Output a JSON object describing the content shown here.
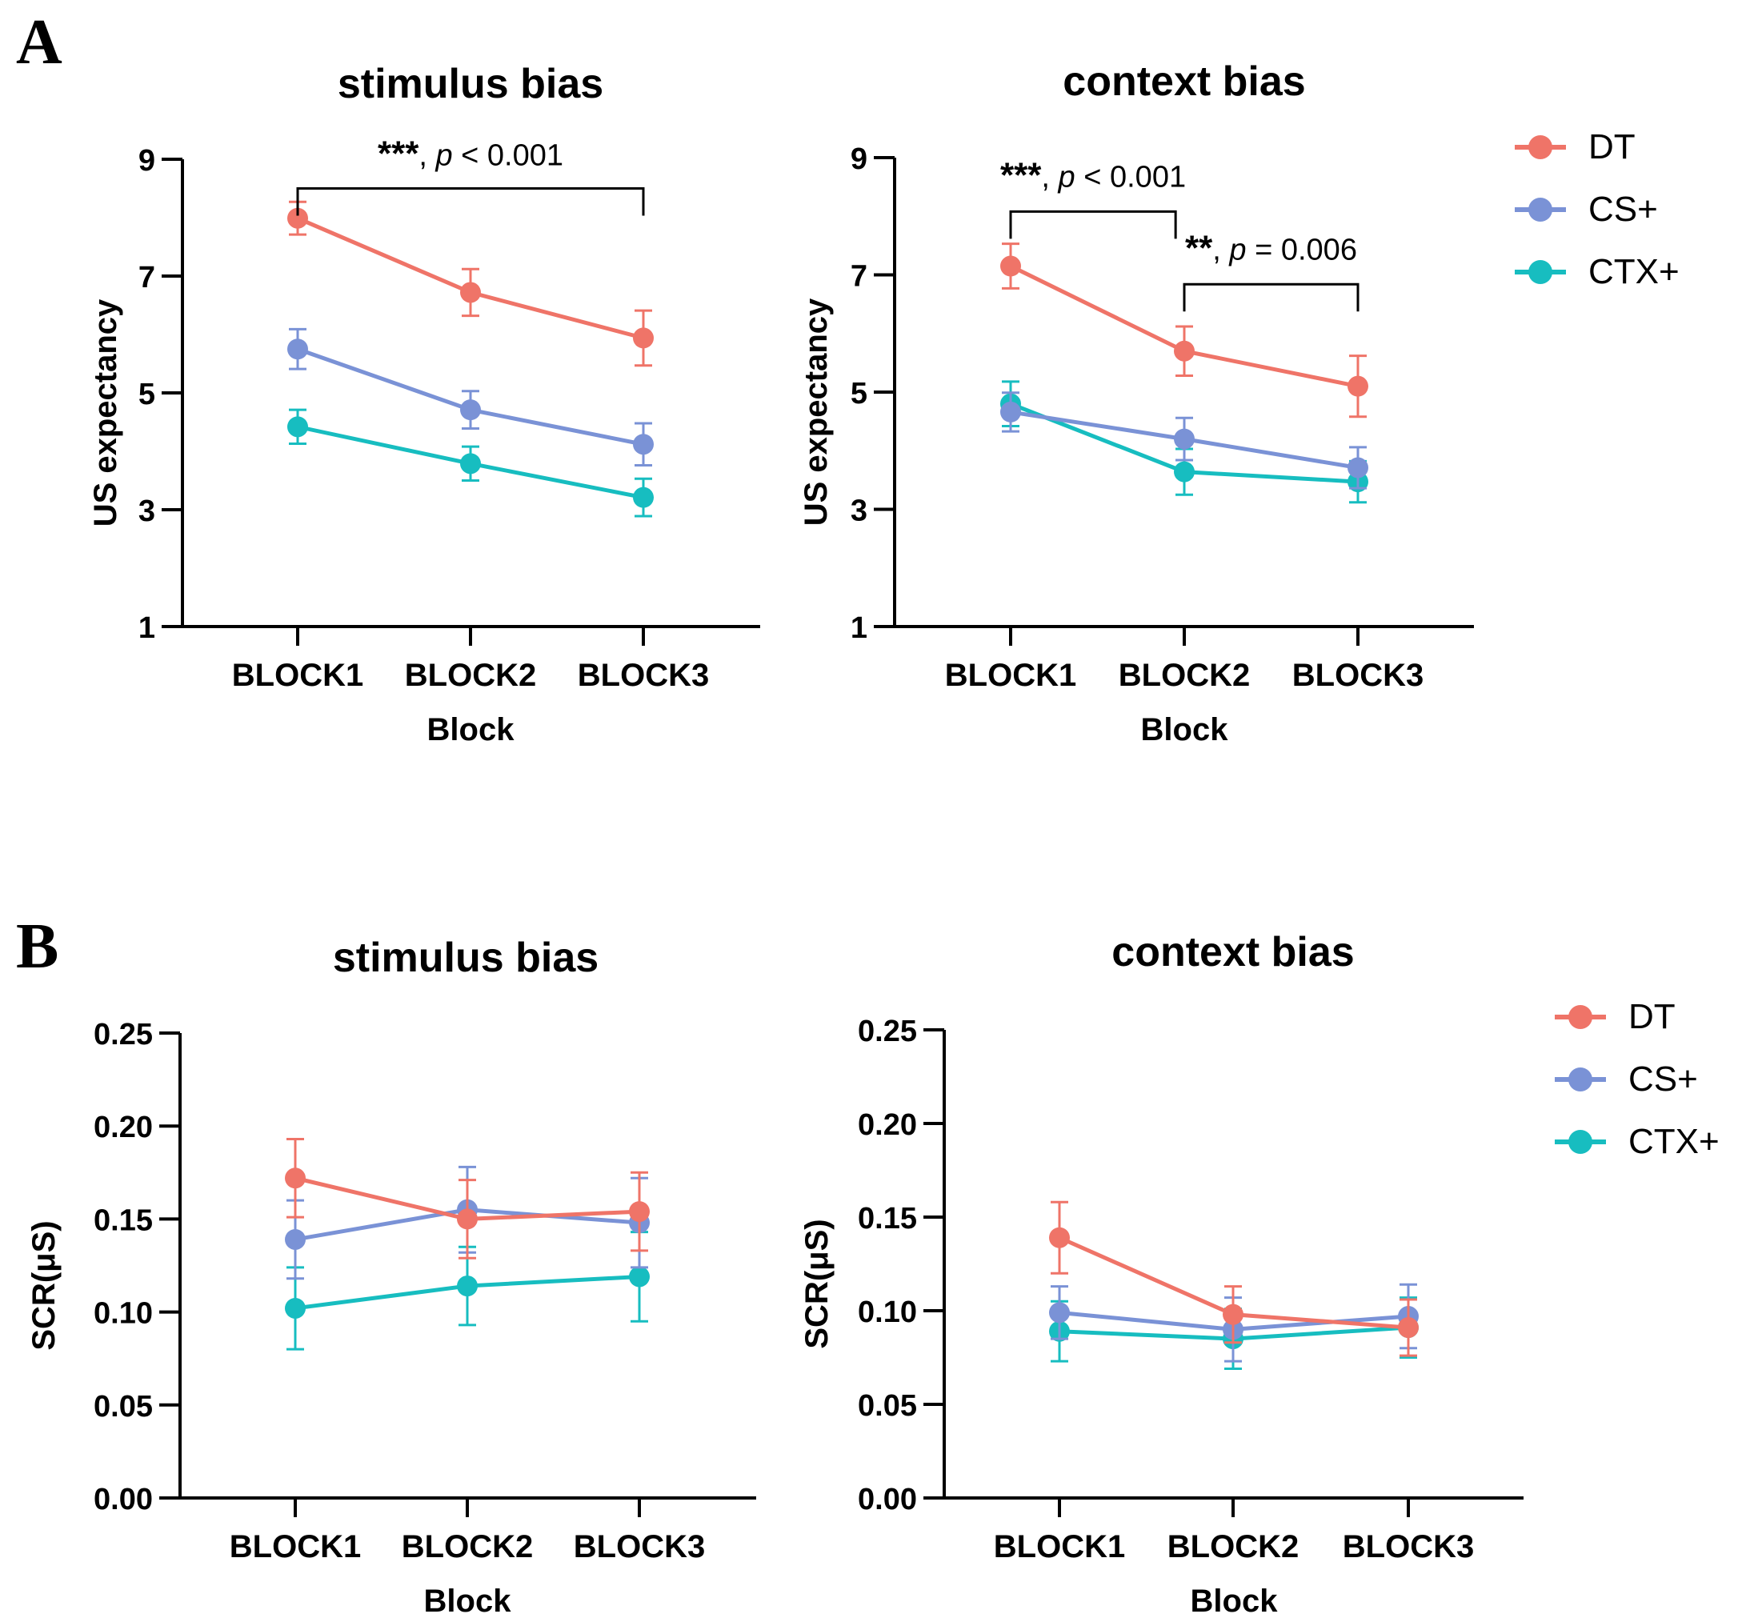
{
  "panels": {
    "a_label": "A",
    "b_label": "B"
  },
  "colors": {
    "DT": "#ef7468",
    "CS+": "#7a92d6",
    "CTX+": "#17bdc0",
    "axis": "#000000"
  },
  "legend": [
    {
      "name": "DT",
      "color": "#ef7468"
    },
    {
      "name": "CS+",
      "color": "#7a92d6"
    },
    {
      "name": "CTX+",
      "color": "#17bdc0"
    }
  ],
  "chart_data": [
    {
      "id": "a-stimulus",
      "type": "line",
      "title": "stimulus bias",
      "xlabel": "Block",
      "ylabel": "US expectancy",
      "categories": [
        "BLOCK1",
        "BLOCK2",
        "BLOCK3"
      ],
      "ylim": [
        1,
        9
      ],
      "yticks": [
        "1",
        "3",
        "5",
        "7",
        "9"
      ],
      "ytick_values": [
        1,
        3,
        5,
        7,
        9
      ],
      "series": [
        {
          "name": "DT",
          "values": [
            7.99,
            6.72,
            5.94
          ],
          "errors": [
            0.28,
            0.4,
            0.47
          ]
        },
        {
          "name": "CS+",
          "values": [
            5.75,
            4.71,
            4.12
          ],
          "errors": [
            0.34,
            0.32,
            0.36
          ]
        },
        {
          "name": "CTX+",
          "values": [
            4.42,
            3.79,
            3.21
          ],
          "errors": [
            0.29,
            0.29,
            0.32
          ]
        }
      ],
      "annotations": [
        {
          "stars": "***",
          "pre": ", ",
          "p": "p",
          "post": " < 0.001",
          "from": 0,
          "to": 2,
          "y": 8.5,
          "text_y": 8.9
        }
      ]
    },
    {
      "id": "a-context",
      "type": "line",
      "title": "context bias",
      "xlabel": "Block",
      "ylabel": "US expectancy",
      "categories": [
        "BLOCK1",
        "BLOCK2",
        "BLOCK3"
      ],
      "ylim": [
        1,
        9
      ],
      "yticks": [
        "1",
        "3",
        "5",
        "7",
        "9"
      ],
      "ytick_values": [
        1,
        3,
        5,
        7,
        9
      ],
      "series": [
        {
          "name": "DT",
          "values": [
            7.15,
            5.7,
            5.1
          ],
          "errors": [
            0.38,
            0.42,
            0.52
          ]
        },
        {
          "name": "CS+",
          "values": [
            4.66,
            4.2,
            3.71
          ],
          "errors": [
            0.33,
            0.36,
            0.35
          ]
        },
        {
          "name": "CTX+",
          "values": [
            4.8,
            3.64,
            3.47
          ],
          "errors": [
            0.38,
            0.39,
            0.35
          ]
        }
      ],
      "annotations": [
        {
          "stars": "***",
          "pre": ", ",
          "p": "p",
          "post": " < 0.001",
          "from": 0,
          "to": 0.95,
          "y": 8.08,
          "text_y": 8.5
        },
        {
          "stars": "**",
          "pre": ", ",
          "p": "p",
          "post": " = 0.006",
          "from": 1,
          "to": 2,
          "y": 6.84,
          "text_y": 7.26
        }
      ]
    },
    {
      "id": "b-stimulus",
      "type": "line",
      "title": "stimulus bias",
      "xlabel": "Block",
      "ylabel": "SCR(μS)",
      "categories": [
        "BLOCK1",
        "BLOCK2",
        "BLOCK3"
      ],
      "ylim": [
        0,
        0.25
      ],
      "yticks": [
        "0.00",
        "0.05",
        "0.10",
        "0.15",
        "0.20",
        "0.25"
      ],
      "ytick_values": [
        0,
        0.05,
        0.1,
        0.15,
        0.2,
        0.25
      ],
      "series": [
        {
          "name": "DT",
          "values": [
            0.172,
            0.15,
            0.154
          ],
          "errors": [
            0.021,
            0.021,
            0.021
          ]
        },
        {
          "name": "CS+",
          "values": [
            0.139,
            0.155,
            0.148
          ],
          "errors": [
            0.021,
            0.023,
            0.024
          ]
        },
        {
          "name": "CTX+",
          "values": [
            0.102,
            0.114,
            0.119
          ],
          "errors": [
            0.022,
            0.021,
            0.024
          ]
        }
      ],
      "annotations": []
    },
    {
      "id": "b-context",
      "type": "line",
      "title": "context bias",
      "xlabel": "Block",
      "ylabel": "SCR(μS)",
      "categories": [
        "BLOCK1",
        "BLOCK2",
        "BLOCK3"
      ],
      "ylim": [
        0,
        0.25
      ],
      "yticks": [
        "0.00",
        "0.05",
        "0.10",
        "0.15",
        "0.20",
        "0.25"
      ],
      "ytick_values": [
        0,
        0.05,
        0.1,
        0.15,
        0.2,
        0.25
      ],
      "series": [
        {
          "name": "DT",
          "values": [
            0.139,
            0.098,
            0.091
          ],
          "errors": [
            0.019,
            0.015,
            0.015
          ]
        },
        {
          "name": "CS+",
          "values": [
            0.099,
            0.09,
            0.097
          ],
          "errors": [
            0.014,
            0.017,
            0.017
          ]
        },
        {
          "name": "CTX+",
          "values": [
            0.089,
            0.085,
            0.091
          ],
          "errors": [
            0.016,
            0.016,
            0.016
          ]
        }
      ],
      "annotations": []
    }
  ]
}
